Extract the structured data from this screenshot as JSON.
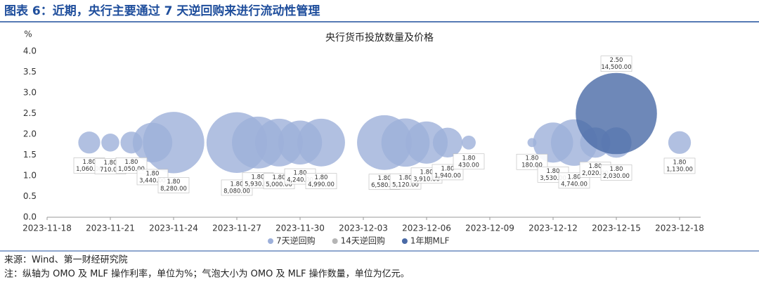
{
  "header": {
    "title": "图表 6：近期，央行主要通过 7 天逆回购来进行流动性管理"
  },
  "chart_data": {
    "type": "bubble",
    "title": "央行货币投放数量及价格",
    "y_label": "%",
    "xlim": [
      "2023-11-18",
      "2023-12-19"
    ],
    "xticks": [
      "2023-11-18",
      "2023-11-21",
      "2023-11-24",
      "2023-11-27",
      "2023-11-30",
      "2023-12-03",
      "2023-12-06",
      "2023-12-09",
      "2023-12-12",
      "2023-12-15",
      "2023-12-18"
    ],
    "ylim": [
      0,
      4
    ],
    "yticks": [
      {
        "value": 0,
        "label": "0.0"
      },
      {
        "value": 0.5,
        "label": "0.5"
      },
      {
        "value": 1,
        "label": "1.0"
      },
      {
        "value": 1.5,
        "label": "1.5"
      },
      {
        "value": 2,
        "label": "2.0"
      },
      {
        "value": 2.5,
        "label": "2.5"
      },
      {
        "value": 3,
        "label": "3.0"
      },
      {
        "value": 3.5,
        "label": "3.5"
      },
      {
        "value": 4,
        "label": "4.0"
      }
    ],
    "legend": "bottom",
    "series": [
      {
        "name": "7天逆回购",
        "color": "#9db0da",
        "label_position": "below",
        "x": [
          "2023-11-20",
          "2023-11-21",
          "2023-11-22",
          "2023-11-23",
          "2023-11-24",
          "2023-11-27",
          "2023-11-28",
          "2023-11-29",
          "2023-11-30",
          "2023-12-01",
          "2023-12-04",
          "2023-12-05",
          "2023-12-06",
          "2023-12-07",
          "2023-12-08",
          "2023-12-11",
          "2023-12-12",
          "2023-12-13",
          "2023-12-14",
          "2023-12-15",
          "2023-12-18"
        ],
        "values": [
          1.8,
          1.8,
          1.8,
          1.8,
          1.8,
          1.8,
          1.8,
          1.8,
          1.8,
          1.8,
          1.8,
          1.8,
          1.8,
          1.8,
          1.8,
          1.8,
          1.8,
          1.8,
          1.8,
          1.8,
          1.8
        ],
        "value_labels": [
          "1.80",
          "1.80",
          "1.80",
          "1.80",
          "1.80",
          "1.80",
          "1.80",
          "1.80",
          "1.80",
          "1.80",
          "1.80",
          "1.80",
          "1.80",
          "1.80",
          "1.80",
          "1.80",
          "1.80",
          "1.80",
          "1.80",
          "1.80",
          "1.80"
        ],
        "sizes": [
          1060,
          710,
          1050,
          3440,
          8280,
          8080,
          5930,
          5000,
          4240,
          4990,
          6580,
          5120,
          3910,
          1940,
          430,
          180,
          3530,
          4740,
          2020,
          2030,
          1130
        ],
        "size_labels": [
          "1,060.00",
          "710.00",
          "1,050.00",
          "3,440.00",
          "8,280.00",
          "8,080.00",
          "5,930.00",
          "5,000.00",
          "4,240.00",
          "4,990.00",
          "6,580.00",
          "5,120.00",
          "3,910.00",
          "1,940.00",
          "430.00",
          "180.00",
          "3,530.00",
          "4,740.00",
          "2,020.00",
          "2,030.00",
          "1,130.00"
        ]
      },
      {
        "name": "14天逆回购",
        "color": "#b5b5b5",
        "label_position": "below",
        "x": [],
        "values": [],
        "value_labels": [],
        "sizes": [],
        "size_labels": []
      },
      {
        "name": "1年期MLF",
        "color": "#4a6aa6",
        "label_position": "above",
        "x": [
          "2023-12-15"
        ],
        "values": [
          2.5
        ],
        "value_labels": [
          "2.50"
        ],
        "sizes": [
          14500
        ],
        "size_labels": [
          "14,500.00"
        ]
      }
    ]
  },
  "footer": {
    "source": "来源：Wind、第一财经研究院",
    "note": "注：纵轴为 OMO 及 MLF 操作利率，单位为%；气泡大小为 OMO 及 MLF 操作数量，单位为亿元。"
  }
}
